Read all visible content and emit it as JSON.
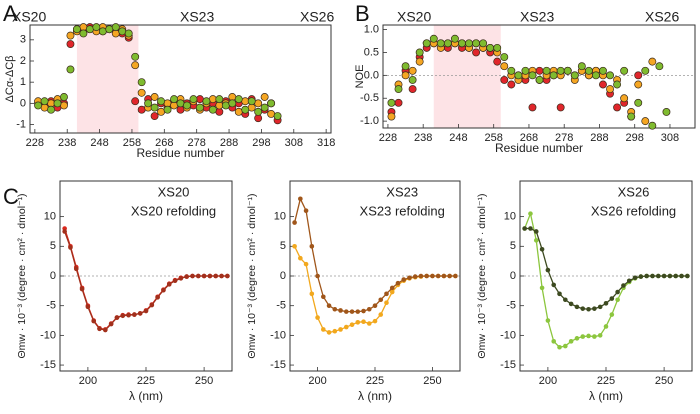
{
  "panel_labels": [
    "A",
    "B",
    "C"
  ],
  "chart_data": [
    {
      "type": "scatter",
      "x_label": "Residue number",
      "y_label": "ΔCα-ΔCβ",
      "x": [
        229,
        231,
        233,
        235,
        237,
        239,
        241,
        243,
        245,
        247,
        249,
        251,
        253,
        255,
        257,
        259,
        261,
        263,
        265,
        267,
        269,
        271,
        273,
        275,
        277,
        279,
        281,
        283,
        285,
        287,
        289,
        291,
        293,
        295,
        297,
        299,
        301,
        303
      ],
      "series": [
        {
          "name": "XS20",
          "color": "#e0262b",
          "values": [
            0.0,
            -0.1,
            0.1,
            -0.2,
            0.0,
            2.8,
            3.5,
            3.4,
            3.6,
            3.5,
            3.4,
            3.5,
            3.4,
            3.3,
            3.1,
            0.1,
            -0.3,
            0.2,
            -0.6,
            0.0,
            -0.2,
            0.1,
            -0.3,
            0.0,
            -0.1,
            0.2,
            -0.2,
            0.0,
            -0.4,
            0.1,
            -0.2,
            0.0,
            -0.5,
            0.2,
            -0.7,
            -0.3,
            0.0,
            -0.8
          ]
        },
        {
          "name": "XS23",
          "color": "#f5a623",
          "values": [
            0.1,
            -0.2,
            0.0,
            0.2,
            -0.1,
            3.2,
            3.4,
            3.6,
            3.5,
            3.4,
            3.6,
            3.5,
            3.3,
            3.5,
            3.2,
            1.8,
            0.5,
            -0.2,
            0.3,
            -0.4,
            0.0,
            -0.1,
            0.2,
            -0.2,
            0.1,
            -0.3,
            0.0,
            0.2,
            -0.1,
            0.0,
            0.3,
            -0.4,
            0.1,
            -0.2,
            0.0,
            0.3,
            -0.5,
            null
          ]
        },
        {
          "name": "XS26",
          "color": "#7fbb2f",
          "values": [
            -0.1,
            0.1,
            -0.3,
            0.0,
            0.3,
            1.6,
            3.5,
            3.3,
            3.5,
            3.6,
            3.4,
            3.5,
            3.6,
            3.4,
            3.3,
            2.2,
            1.0,
            0.0,
            -0.2,
            0.1,
            -0.3,
            0.2,
            0.0,
            -0.1,
            0.2,
            -0.2,
            0.1,
            -0.3,
            0.2,
            -0.1,
            0.0,
            0.2,
            -0.3,
            0.1,
            -0.4,
            -0.2,
            0.0,
            -0.6
          ]
        }
      ],
      "xlim": [
        226.5,
        319.5
      ],
      "ylim": [
        -1.4,
        3.7
      ],
      "xticks": [
        228,
        238,
        248,
        258,
        268,
        278,
        288,
        298,
        308,
        318
      ],
      "yticks": [
        -1,
        0,
        1,
        2,
        3
      ],
      "shaded_range": [
        241,
        260
      ],
      "shade_color": "#fde3e6"
    },
    {
      "type": "scatter",
      "x_label": "Residue number",
      "y_label": "NOE",
      "x": [
        229,
        231,
        233,
        235,
        237,
        239,
        241,
        243,
        245,
        247,
        249,
        251,
        253,
        255,
        257,
        259,
        261,
        263,
        265,
        267,
        269,
        271,
        273,
        275,
        277,
        279,
        281,
        283,
        285,
        287,
        289,
        291,
        293,
        295,
        297,
        299,
        301,
        303,
        305,
        307
      ],
      "series": [
        {
          "name": "XS20",
          "color": "#e0262b",
          "values": [
            -0.8,
            -0.6,
            0.1,
            -0.3,
            0.4,
            0.6,
            0.7,
            0.7,
            0.6,
            0.7,
            0.6,
            0.6,
            0.5,
            0.6,
            0.5,
            0.3,
            -0.1,
            -0.2,
            0.0,
            -0.1,
            -0.7,
            0.1,
            -0.1,
            0.0,
            -0.7,
            0.1,
            0.0,
            0.1,
            0.0,
            0.1,
            -0.2,
            -0.4,
            -0.7,
            -0.6,
            -0.9,
            0.0,
            null,
            null,
            null,
            null
          ]
        },
        {
          "name": "XS23",
          "color": "#f5a623",
          "values": [
            -0.9,
            -0.2,
            0.0,
            0.1,
            0.3,
            0.7,
            0.7,
            0.6,
            0.7,
            0.7,
            0.7,
            0.6,
            0.7,
            0.6,
            0.6,
            0.5,
            0.2,
            0.0,
            -0.1,
            0.0,
            0.1,
            -0.1,
            0.0,
            0.1,
            0.0,
            0.1,
            -0.1,
            0.1,
            0.0,
            0.1,
            0.0,
            -0.3,
            -0.1,
            -0.5,
            -0.8,
            -0.2,
            -1.0,
            0.3,
            null,
            null
          ]
        },
        {
          "name": "XS26",
          "color": "#7fbb2f",
          "values": [
            -0.6,
            -0.3,
            0.2,
            -0.1,
            0.5,
            0.7,
            0.8,
            0.7,
            0.7,
            0.8,
            0.7,
            0.7,
            0.7,
            0.7,
            0.6,
            0.6,
            0.4,
            0.1,
            0.0,
            0.1,
            0.0,
            -0.1,
            0.1,
            0.0,
            0.1,
            0.1,
            0.0,
            0.2,
            0.1,
            0.0,
            0.1,
            0.0,
            -0.2,
            0.1,
            -0.9,
            -0.6,
            0.1,
            -1.1,
            0.2,
            -0.8
          ]
        }
      ],
      "xlim": [
        226.6,
        315.1
      ],
      "ylim": [
        -1.15,
        1.1
      ],
      "xticks": [
        228,
        238,
        248,
        258,
        268,
        278,
        288,
        298,
        308
      ],
      "yticks": [
        {
          "value": 1,
          "label": "1.0"
        },
        {
          "value": 0.5,
          "label": "0.5"
        },
        {
          "value": 0,
          "label": "0.0"
        },
        {
          "value": -0.5,
          "label": "-0.5"
        },
        {
          "value": -1,
          "label": "-1.0"
        }
      ],
      "shaded_range": [
        241,
        260
      ],
      "shade_color": "#fde3e6",
      "reference_line": 0
    },
    {
      "type": "line",
      "x_label": "λ (nm)",
      "y_label": "Θmw · 10⁻³ (degree · cm² · dmol⁻¹)",
      "x": [
        190,
        192.5,
        195,
        197.5,
        200,
        202.5,
        205,
        207.5,
        210,
        212.5,
        215,
        217.5,
        220,
        222.5,
        225,
        227.5,
        230,
        232.5,
        235,
        237.5,
        240,
        242.5,
        245,
        247.5,
        250,
        252.5,
        255,
        257.5,
        260
      ],
      "series": [
        {
          "name": "XS20",
          "color": "#d9261c",
          "values": [
            8,
            5,
            1.5,
            -2,
            -5,
            -7.5,
            -8.8,
            -9,
            -8,
            -7,
            -6.6,
            -6.5,
            -6.5,
            -6.3,
            -5.8,
            -4.8,
            -3.5,
            -2.3,
            -1.3,
            -0.7,
            -0.3,
            -0.1,
            0,
            0,
            0,
            0,
            0,
            0,
            0
          ]
        },
        {
          "name": "XS20 refolding",
          "color": "#a2301c",
          "values": [
            7.5,
            4.8,
            1.2,
            -2.2,
            -5.2,
            -7.6,
            -8.9,
            -9.1,
            -8.1,
            -7,
            -6.7,
            -6.6,
            -6.5,
            -6.3,
            -5.9,
            -4.9,
            -3.6,
            -2.4,
            -1.4,
            -0.8,
            -0.4,
            -0.1,
            0,
            0,
            0,
            0,
            0,
            0,
            0
          ]
        }
      ],
      "xlim": [
        188,
        262
      ],
      "ylim": [
        -16,
        16
      ],
      "xticks": [
        200,
        225,
        250
      ],
      "yticks": [
        -15,
        -10,
        -5,
        0,
        5,
        10
      ],
      "reference_line": 0
    },
    {
      "type": "line",
      "x_label": "λ (nm)",
      "y_label": "Θmw · 10⁻³ (degree · cm² · dmol⁻¹)",
      "x": [
        190,
        192.5,
        195,
        197.5,
        200,
        202.5,
        205,
        207.5,
        210,
        212.5,
        215,
        217.5,
        220,
        222.5,
        225,
        227.5,
        230,
        232.5,
        235,
        237.5,
        240,
        242.5,
        245,
        247.5,
        250,
        252.5,
        255,
        257.5,
        260
      ],
      "series": [
        {
          "name": "XS23",
          "color": "#f2a81d",
          "values": [
            5,
            3,
            2,
            -3,
            -7,
            -9,
            -9.5,
            -9.3,
            -9,
            -8.6,
            -8.2,
            -7.8,
            -7.7,
            -8,
            -7.6,
            -6.5,
            -4.5,
            -2.7,
            -1.5,
            -0.8,
            -0.4,
            -0.2,
            -0.1,
            0,
            0,
            0,
            0,
            0,
            0
          ]
        },
        {
          "name": "XS23 refolding",
          "color": "#a0561a",
          "values": [
            9,
            13,
            11,
            5,
            0,
            -3.5,
            -5,
            -5.6,
            -5.8,
            -6,
            -6,
            -6,
            -5.9,
            -5.6,
            -5,
            -4,
            -3,
            -2,
            -1.2,
            -0.6,
            -0.3,
            -0.1,
            0,
            0,
            0,
            0,
            0,
            0,
            0
          ]
        }
      ],
      "xlim": [
        188,
        262
      ],
      "ylim": [
        -16,
        16
      ],
      "xticks": [
        200,
        225,
        250
      ],
      "yticks": [
        -15,
        -10,
        -5,
        0,
        5,
        10
      ],
      "reference_line": 0
    },
    {
      "type": "line",
      "x_label": "λ (nm)",
      "y_label": "Θmw · 10⁻³ (degree · cm² · dmol⁻¹)",
      "x": [
        190,
        192.5,
        195,
        197.5,
        200,
        202.5,
        205,
        207.5,
        210,
        212.5,
        215,
        217.5,
        220,
        222.5,
        225,
        227.5,
        230,
        232.5,
        235,
        237.5,
        240,
        242.5,
        245,
        247.5,
        250,
        252.5,
        255,
        257.5,
        260
      ],
      "series": [
        {
          "name": "XS26",
          "color": "#8cc63e",
          "values": [
            8,
            10.5,
            6,
            -2,
            -7.5,
            -11,
            -12,
            -11.8,
            -11,
            -10.5,
            -10.2,
            -10.1,
            -10.2,
            -10,
            -8.5,
            -6.5,
            -4,
            -2,
            -1,
            -0.4,
            -0.1,
            0,
            0,
            0,
            0,
            0,
            0,
            0,
            0
          ]
        },
        {
          "name": "XS26 refolding",
          "color": "#3d4a20",
          "values": [
            8,
            8,
            7.5,
            4.5,
            1,
            -1.5,
            -3,
            -4,
            -4.7,
            -5.2,
            -5.5,
            -5.6,
            -5.5,
            -5.2,
            -4.6,
            -3.8,
            -2.7,
            -1.6,
            -0.8,
            -0.3,
            -0.1,
            0,
            0,
            0,
            0,
            0,
            0,
            0,
            0
          ]
        }
      ],
      "xlim": [
        188,
        262
      ],
      "ylim": [
        -16,
        16
      ],
      "xticks": [
        200,
        225,
        250
      ],
      "yticks": [
        -15,
        -10,
        -5,
        0,
        5,
        10
      ],
      "reference_line": 0
    }
  ]
}
